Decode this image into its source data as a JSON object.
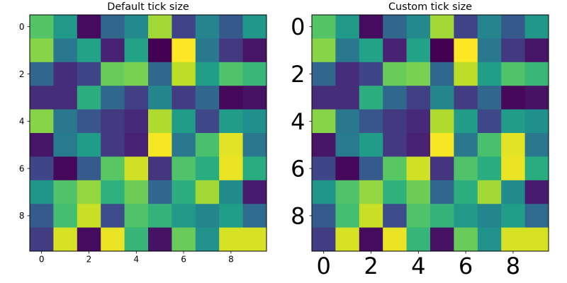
{
  "chart_data": [
    {
      "type": "heatmap",
      "title": "Default tick size",
      "xlabel": "",
      "ylabel": "",
      "colormap": "viridis",
      "value_range": [
        0,
        1
      ],
      "x_ticks": [
        0,
        2,
        4,
        6,
        8
      ],
      "y_ticks": [
        0,
        2,
        4,
        6,
        8
      ],
      "tick_label_size": "default",
      "grid": false,
      "values": [
        [
          0.73,
          0.54,
          0.03,
          0.33,
          0.47,
          0.86,
          0.2,
          0.45,
          0.28,
          0.53
        ],
        [
          0.82,
          0.4,
          0.58,
          0.1,
          0.58,
          0.0,
          1.0,
          0.4,
          0.17,
          0.06
        ],
        [
          0.33,
          0.13,
          0.21,
          0.77,
          0.8,
          0.34,
          0.9,
          0.56,
          0.72,
          0.67
        ],
        [
          0.13,
          0.13,
          0.63,
          0.34,
          0.19,
          0.46,
          0.18,
          0.33,
          0.02,
          0.05
        ],
        [
          0.82,
          0.4,
          0.27,
          0.17,
          0.12,
          0.88,
          0.55,
          0.22,
          0.55,
          0.5
        ],
        [
          0.06,
          0.41,
          0.55,
          0.17,
          0.1,
          0.99,
          0.4,
          0.71,
          0.96,
          0.4
        ],
        [
          0.21,
          0.02,
          0.29,
          0.74,
          0.93,
          0.16,
          0.72,
          0.62,
          0.97,
          0.62
        ],
        [
          0.52,
          0.72,
          0.84,
          0.64,
          0.78,
          0.33,
          0.63,
          0.86,
          0.48,
          0.08
        ],
        [
          0.29,
          0.7,
          0.92,
          0.23,
          0.72,
          0.65,
          0.54,
          0.46,
          0.56,
          0.35
        ],
        [
          0.18,
          0.94,
          0.03,
          0.97,
          0.66,
          0.05,
          0.77,
          0.51,
          0.94,
          0.94
        ]
      ]
    },
    {
      "type": "heatmap",
      "title": "Custom tick size",
      "xlabel": "",
      "ylabel": "",
      "colormap": "viridis",
      "value_range": [
        0,
        1
      ],
      "x_ticks": [
        0,
        2,
        4,
        6,
        8
      ],
      "y_ticks": [
        0,
        2,
        4,
        6,
        8
      ],
      "tick_label_size": "large",
      "grid": false,
      "values": [
        [
          0.73,
          0.54,
          0.03,
          0.33,
          0.47,
          0.86,
          0.2,
          0.45,
          0.28,
          0.53
        ],
        [
          0.82,
          0.4,
          0.58,
          0.1,
          0.58,
          0.0,
          1.0,
          0.4,
          0.17,
          0.06
        ],
        [
          0.33,
          0.13,
          0.21,
          0.77,
          0.8,
          0.34,
          0.9,
          0.56,
          0.72,
          0.67
        ],
        [
          0.13,
          0.13,
          0.63,
          0.34,
          0.19,
          0.46,
          0.18,
          0.33,
          0.02,
          0.05
        ],
        [
          0.82,
          0.4,
          0.27,
          0.17,
          0.12,
          0.88,
          0.55,
          0.22,
          0.55,
          0.5
        ],
        [
          0.06,
          0.41,
          0.55,
          0.17,
          0.1,
          0.99,
          0.4,
          0.71,
          0.96,
          0.4
        ],
        [
          0.21,
          0.02,
          0.29,
          0.74,
          0.93,
          0.16,
          0.72,
          0.62,
          0.97,
          0.62
        ],
        [
          0.52,
          0.72,
          0.84,
          0.64,
          0.78,
          0.33,
          0.63,
          0.86,
          0.48,
          0.08
        ],
        [
          0.29,
          0.7,
          0.92,
          0.23,
          0.72,
          0.65,
          0.54,
          0.46,
          0.56,
          0.35
        ],
        [
          0.18,
          0.94,
          0.03,
          0.97,
          0.66,
          0.05,
          0.77,
          0.51,
          0.94,
          0.94
        ]
      ]
    }
  ]
}
